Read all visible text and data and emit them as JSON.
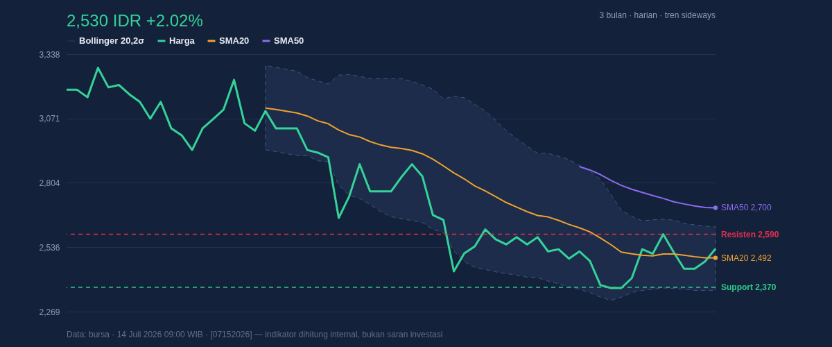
{
  "chart_data": {
    "type": "line",
    "title": "2,530 IDR +2.02%",
    "subtitle": "3 bulan · harian · tren sideways",
    "annotations": [
      "Data: bursa · 14 Juli 2026 09:00 WIB · [07152026] — indikator dihitung internal, bukan saran investasi"
    ],
    "categories": [
      null,
      null,
      null,
      null,
      null,
      null,
      null,
      null,
      null,
      null,
      null,
      null,
      null,
      null,
      null,
      null,
      null,
      null,
      null,
      null,
      null,
      null,
      null,
      null,
      null,
      null,
      null,
      null,
      null,
      null,
      null,
      null,
      null,
      null,
      null,
      null,
      null,
      null,
      null,
      null,
      null,
      null,
      null,
      null,
      null,
      null,
      null,
      null,
      null,
      null,
      null,
      null,
      null,
      null,
      null,
      null,
      null,
      null,
      null,
      null,
      null,
      null,
      null
    ],
    "ylim": [
      2269,
      3338
    ],
    "yticks": [
      {
        "value": 2269,
        "label": "2,269"
      },
      {
        "value": 2536,
        "label": "2,536"
      },
      {
        "value": 2804,
        "label": "2,804"
      },
      {
        "value": 3071,
        "label": "3,071"
      },
      {
        "value": 3338,
        "label": "3,338"
      }
    ],
    "grid": "y",
    "legend": "top left",
    "series": [
      {
        "name": "Bollinger 20,2σ",
        "type": "area",
        "color": "#1d2c4b",
        "line_style": "dashed",
        "values": [
          null,
          null,
          null,
          null,
          null,
          null,
          null,
          null,
          null,
          null,
          null,
          null,
          null,
          null,
          null,
          null,
          null,
          null,
          null,
          null,
          null,
          null,
          null,
          null,
          null,
          null,
          null,
          null,
          null,
          null,
          null,
          null,
          null,
          null,
          null,
          null,
          null,
          null,
          null,
          null,
          null,
          null,
          null,
          null,
          null,
          null,
          null,
          null,
          null,
          null,
          null,
          null,
          null,
          null,
          null,
          null,
          null,
          null,
          null,
          null,
          null,
          null,
          null
        ],
        "lower": [
          null,
          null,
          null,
          null,
          null,
          null,
          null,
          null,
          null,
          null,
          null,
          null,
          null,
          null,
          null,
          null,
          null,
          null,
          null,
          2941,
          2933,
          2925,
          2917,
          2916,
          2895,
          2891,
          2794,
          2751,
          2739,
          2713,
          2684,
          2663,
          2655,
          2647,
          2639,
          2610,
          2597,
          2521,
          2477,
          2453,
          2444,
          2434,
          2427,
          2420,
          2412,
          2410,
          2396,
          2384,
          2372,
          2362,
          2348,
          2329,
          2316,
          2329,
          2348,
          2357,
          2362,
          2367,
          2365,
          2362,
          2357,
          2357,
          2356
        ],
        "upper": [
          null,
          null,
          null,
          null,
          null,
          null,
          null,
          null,
          null,
          null,
          null,
          null,
          null,
          null,
          null,
          null,
          null,
          null,
          null,
          3291,
          3283,
          3275,
          3267,
          3241,
          3227,
          3214,
          3251,
          3253,
          3246,
          3236,
          3236,
          3236,
          3236,
          3225,
          3210,
          3193,
          3152,
          3164,
          3157,
          3129,
          3102,
          3063,
          3020,
          2987,
          2956,
          2926,
          2926,
          2914,
          2900,
          2876,
          2852,
          2818,
          2756,
          2689,
          2665,
          2646,
          2650,
          2652,
          2649,
          2636,
          2629,
          2624,
          2621
        ]
      },
      {
        "name": "Harga",
        "color": "#34d399",
        "values": [
          3190,
          3190,
          3159,
          3281,
          3200,
          3210,
          3171,
          3140,
          3070,
          3140,
          3030,
          3001,
          2940,
          3030,
          3068,
          3108,
          3231,
          3051,
          3020,
          3102,
          3030,
          3030,
          3030,
          2940,
          2929,
          2910,
          2658,
          2747,
          2881,
          2768,
          2768,
          2768,
          2828,
          2881,
          2830,
          2670,
          2650,
          2436,
          2511,
          2540,
          2610,
          2569,
          2548,
          2578,
          2548,
          2578,
          2519,
          2528,
          2489,
          2519,
          2479,
          2379,
          2367,
          2367,
          2408,
          2528,
          2509,
          2590,
          2516,
          2447,
          2447,
          2477,
          2530
        ]
      },
      {
        "name": "SMA20",
        "color": "#f0a22e",
        "values": [
          null,
          null,
          null,
          null,
          null,
          null,
          null,
          null,
          null,
          null,
          null,
          null,
          null,
          null,
          null,
          null,
          null,
          null,
          null,
          3114,
          3108,
          3101,
          3094,
          3081,
          3061,
          3049,
          3023,
          3004,
          2994,
          2975,
          2961,
          2951,
          2946,
          2938,
          2924,
          2902,
          2874,
          2845,
          2820,
          2791,
          2770,
          2746,
          2722,
          2703,
          2684,
          2668,
          2662,
          2648,
          2631,
          2617,
          2600,
          2575,
          2547,
          2516,
          2509,
          2503,
          2500,
          2508,
          2508,
          2503,
          2497,
          2492,
          2492
        ],
        "value_labels": [
          null,
          null,
          null,
          null,
          null,
          null,
          null,
          null,
          null,
          null,
          null,
          null,
          null,
          null,
          null,
          null,
          null,
          null,
          null,
          null,
          null,
          null,
          null,
          null,
          null,
          null,
          null,
          null,
          null,
          null,
          null,
          null,
          null,
          null,
          null,
          null,
          null,
          null,
          null,
          null,
          null,
          null,
          null,
          null,
          null,
          null,
          null,
          null,
          null,
          null,
          null,
          null,
          null,
          null,
          null,
          null,
          null,
          null,
          null,
          null,
          null,
          null,
          "SMA20 2,492"
        ]
      },
      {
        "name": "SMA50",
        "color": "#8b6cf0",
        "values": [
          null,
          null,
          null,
          null,
          null,
          null,
          null,
          null,
          null,
          null,
          null,
          null,
          null,
          null,
          null,
          null,
          null,
          null,
          null,
          null,
          null,
          null,
          null,
          null,
          null,
          null,
          null,
          null,
          null,
          null,
          null,
          null,
          null,
          null,
          null,
          null,
          null,
          null,
          null,
          null,
          null,
          null,
          null,
          null,
          null,
          null,
          null,
          null,
          null,
          2871,
          2857,
          2838,
          2814,
          2793,
          2777,
          2764,
          2751,
          2739,
          2725,
          2716,
          2708,
          2701,
          2700
        ],
        "value_labels": [
          null,
          null,
          null,
          null,
          null,
          null,
          null,
          null,
          null,
          null,
          null,
          null,
          null,
          null,
          null,
          null,
          null,
          null,
          null,
          null,
          null,
          null,
          null,
          null,
          null,
          null,
          null,
          null,
          null,
          null,
          null,
          null,
          null,
          null,
          null,
          null,
          null,
          null,
          null,
          null,
          null,
          null,
          null,
          null,
          null,
          null,
          null,
          null,
          null,
          null,
          null,
          null,
          null,
          null,
          null,
          null,
          null,
          null,
          null,
          null,
          null,
          null,
          "SMA50 2,700"
        ]
      }
    ],
    "ref_lines": [
      {
        "axis": "y",
        "value": 2590,
        "label": "Resisten 2,590",
        "color": "#e0304e",
        "line_style": "dashed"
      },
      {
        "axis": "y",
        "value": 2370,
        "label": "Support 2,370",
        "color": "#2ec98a",
        "line_style": "dashed"
      }
    ]
  }
}
